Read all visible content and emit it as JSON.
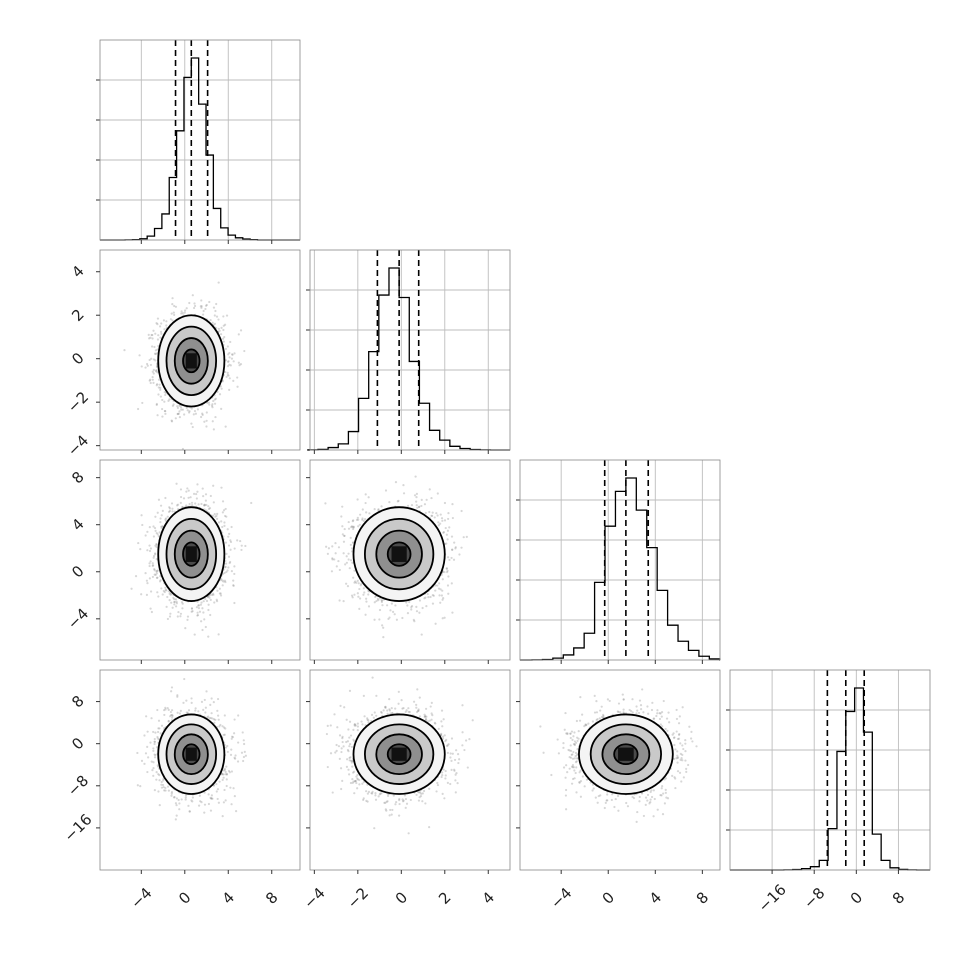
{
  "chart_data": {
    "type": "corner",
    "n_params": 4,
    "title": "",
    "params": [
      {
        "mean": 0.6,
        "std": 1.45,
        "q16": -0.85,
        "q50": 0.6,
        "q84": 2.1,
        "xlim": [
          -7.8,
          10.6
        ],
        "tick_values": [
          -4,
          0,
          4,
          8
        ],
        "tick_labels": [
          "−4",
          "0",
          "4",
          "8"
        ],
        "hist_counts": [
          1,
          3,
          10,
          32,
          95,
          215,
          515,
          900,
          1340,
          1500,
          1120,
          700,
          260,
          100,
          40,
          18,
          8,
          3
        ]
      },
      {
        "mean": -0.1,
        "std": 1.0,
        "q16": -1.1,
        "q50": -0.1,
        "q84": 0.8,
        "xlim": [
          -4.2,
          5.0
        ],
        "tick_values": [
          -4,
          -2,
          0,
          2,
          4
        ],
        "tick_labels": [
          "−4",
          "−2",
          "0",
          "2",
          "4"
        ],
        "hist_counts": [
          1,
          5,
          20,
          50,
          150,
          420,
          800,
          1260,
          1480,
          1240,
          720,
          380,
          160,
          80,
          30,
          12,
          4,
          1
        ]
      },
      {
        "mean": 1.5,
        "std": 1.9,
        "q16": -0.3,
        "q50": 1.5,
        "q84": 3.4,
        "xlim": [
          -7.5,
          9.5
        ],
        "tick_values": [
          -4,
          0,
          4,
          8
        ],
        "tick_labels": [
          "−4",
          "0",
          "4",
          "8"
        ],
        "hist_counts": [
          1,
          4,
          14,
          38,
          90,
          200,
          580,
          1000,
          1260,
          1360,
          1120,
          840,
          520,
          260,
          140,
          72,
          28,
          8
        ]
      },
      {
        "mean": -2.0,
        "std": 3.6,
        "q16": -5.5,
        "q50": -2.0,
        "q84": 1.5,
        "xlim": [
          -24.0,
          14.0
        ],
        "tick_values": [
          -16,
          -8,
          0,
          8
        ],
        "tick_labels": [
          "−16",
          "−8",
          "0",
          "8"
        ],
        "hist_counts": [
          0,
          0,
          1,
          3,
          10,
          24,
          70,
          300,
          860,
          1150,
          1320,
          1000,
          260,
          70,
          16,
          4,
          1,
          0
        ]
      }
    ],
    "contour_levels": [
      0.5,
      1.0,
      1.5,
      2.0
    ],
    "n_samples_shown": 2000,
    "grid": true,
    "grid_on_2d_panels": false,
    "quantiles": [
      0.16,
      0.5,
      0.84
    ]
  }
}
